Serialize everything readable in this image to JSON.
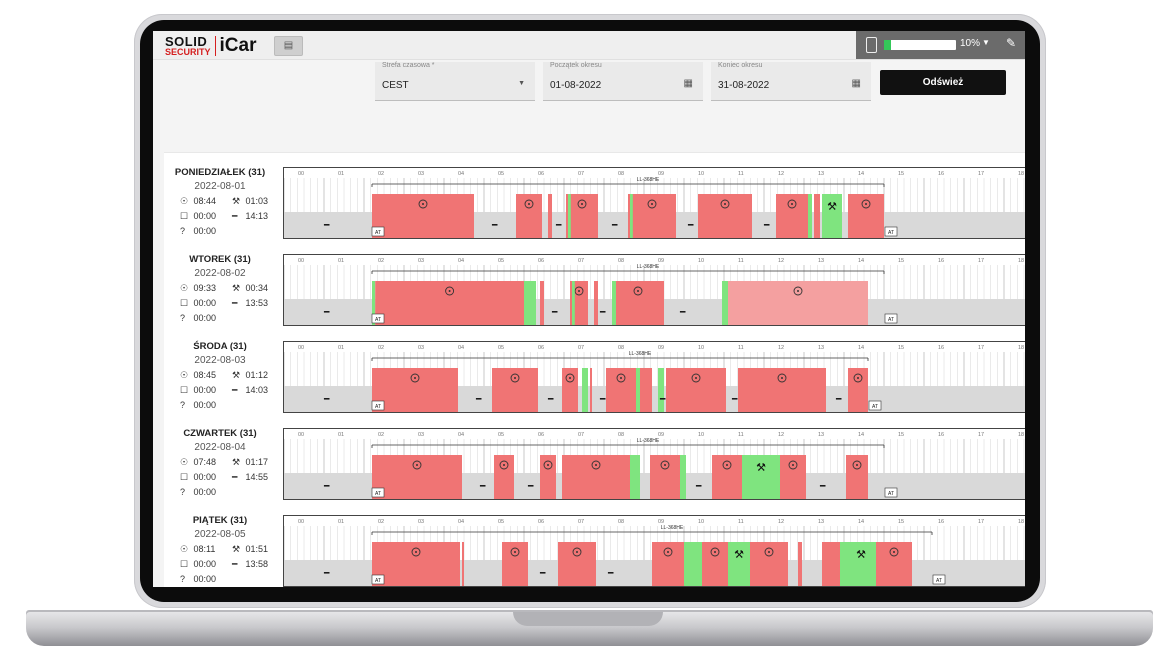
{
  "app": {
    "logo_solid": "SOLID",
    "logo_security": "SECURITY",
    "logo_icar": "iCar",
    "battery_percent_label": "10%",
    "battery_level": 0.1,
    "accent_color": "#d51f1f"
  },
  "filters": {
    "timezone_label": "Strefa czasowa *",
    "timezone_value": "CEST",
    "start_label": "Początek okresu",
    "start_value": "01-08-2022",
    "end_label": "Koniec okresu",
    "end_value": "31-08-2022",
    "refresh_label": "Odśwież"
  },
  "colors": {
    "driving": "#f07474",
    "driving_light": "#f4a0a0",
    "other_work": "#7fe47f",
    "rest": "#d9d9d9",
    "grid": "#d6d6d6"
  },
  "hour_labels": [
    "00",
    "01",
    "02",
    "03",
    "04",
    "05",
    "06",
    "07",
    "08",
    "09",
    "10",
    "11",
    "12",
    "13",
    "14",
    "15",
    "16",
    "17",
    "18"
  ],
  "days": [
    {
      "name": "PONIEDZIAŁEK (31)",
      "date": "2022-08-01",
      "driving": "08:44",
      "work": "01:03",
      "availability": "00:00",
      "rest": "14:13",
      "unknown": "00:00",
      "plate": "LL-368HE",
      "at_label": "AT",
      "plate_span": [
        2.2,
        15.0
      ],
      "blocks": [
        {
          "s": 2.2,
          "e": 4.75,
          "t": "d",
          "icon": true
        },
        {
          "s": 5.8,
          "e": 6.45,
          "t": "d",
          "icon": true
        },
        {
          "s": 6.6,
          "e": 6.7,
          "t": "d"
        },
        {
          "s": 7.05,
          "e": 7.85,
          "t": "d",
          "icon": true
        },
        {
          "s": 7.1,
          "e": 7.17,
          "t": "w"
        },
        {
          "s": 8.6,
          "e": 9.8,
          "t": "d",
          "icon": true
        },
        {
          "s": 8.65,
          "e": 8.72,
          "t": "w"
        },
        {
          "s": 10.35,
          "e": 11.7,
          "t": "d",
          "icon": true
        },
        {
          "s": 12.3,
          "e": 13.1,
          "t": "d",
          "icon": true
        },
        {
          "s": 13.1,
          "e": 13.2,
          "t": "w"
        },
        {
          "s": 13.25,
          "e": 13.4,
          "t": "d"
        },
        {
          "s": 13.45,
          "e": 13.95,
          "t": "w",
          "icon": true
        },
        {
          "s": 14.1,
          "e": 15.0,
          "t": "d",
          "icon": true
        }
      ],
      "rests": [
        1.0,
        5.2,
        6.8,
        8.2,
        10.1,
        12.0
      ]
    },
    {
      "name": "WTOREK (31)",
      "date": "2022-08-02",
      "driving": "09:33",
      "work": "00:34",
      "availability": "00:00",
      "rest": "13:53",
      "unknown": "00:00",
      "plate": "LL-368HE",
      "at_label": "AT",
      "plate_span": [
        2.2,
        15.0
      ],
      "blocks": [
        {
          "s": 2.2,
          "e": 2.28,
          "t": "w"
        },
        {
          "s": 2.28,
          "e": 6.0,
          "t": "d",
          "icon": true
        },
        {
          "s": 6.0,
          "e": 6.3,
          "t": "w"
        },
        {
          "s": 6.4,
          "e": 6.5,
          "t": "d"
        },
        {
          "s": 7.15,
          "e": 7.6,
          "t": "d",
          "icon": true
        },
        {
          "s": 7.2,
          "e": 7.27,
          "t": "w"
        },
        {
          "s": 7.75,
          "e": 7.85,
          "t": "d"
        },
        {
          "s": 8.2,
          "e": 9.5,
          "t": "d",
          "icon": true
        },
        {
          "s": 8.2,
          "e": 8.3,
          "t": "w"
        },
        {
          "s": 10.95,
          "e": 11.1,
          "t": "w"
        },
        {
          "s": 11.1,
          "e": 14.6,
          "t": "dl",
          "icon": true
        }
      ],
      "rests": [
        1.0,
        6.7,
        7.9,
        9.9
      ]
    },
    {
      "name": "ŚRODA (31)",
      "date": "2022-08-03",
      "driving": "08:45",
      "work": "01:12",
      "availability": "00:00",
      "rest": "14:03",
      "unknown": "00:00",
      "plate": "LL-368HE",
      "at_label": "AT",
      "plate_span": [
        2.2,
        14.6
      ],
      "blocks": [
        {
          "s": 2.2,
          "e": 4.35,
          "t": "d",
          "icon": true
        },
        {
          "s": 5.2,
          "e": 6.35,
          "t": "d",
          "icon": true
        },
        {
          "s": 6.95,
          "e": 7.35,
          "t": "d",
          "icon": true
        },
        {
          "s": 7.45,
          "e": 7.6,
          "t": "w"
        },
        {
          "s": 7.65,
          "e": 7.7,
          "t": "d"
        },
        {
          "s": 8.05,
          "e": 8.8,
          "t": "d",
          "icon": true
        },
        {
          "s": 8.8,
          "e": 8.9,
          "t": "w"
        },
        {
          "s": 8.9,
          "e": 9.2,
          "t": "d"
        },
        {
          "s": 9.35,
          "e": 9.5,
          "t": "w"
        },
        {
          "s": 9.55,
          "e": 11.05,
          "t": "d",
          "icon": true
        },
        {
          "s": 11.35,
          "e": 13.55,
          "t": "d",
          "icon": true
        },
        {
          "s": 14.1,
          "e": 14.6,
          "t": "d",
          "icon": true
        }
      ],
      "rests": [
        1.0,
        4.8,
        6.6,
        7.9,
        9.4,
        11.2,
        13.8
      ]
    },
    {
      "name": "CZWARTEK (31)",
      "date": "2022-08-04",
      "driving": "07:48",
      "work": "01:17",
      "availability": "00:00",
      "rest": "14:55",
      "unknown": "00:00",
      "plate": "LL-368HE",
      "at_label": "AT",
      "plate_span": [
        2.2,
        15.0
      ],
      "blocks": [
        {
          "s": 2.2,
          "e": 4.45,
          "t": "d",
          "icon": true
        },
        {
          "s": 5.25,
          "e": 5.75,
          "t": "d",
          "icon": true
        },
        {
          "s": 6.4,
          "e": 6.8,
          "t": "d",
          "icon": true
        },
        {
          "s": 6.95,
          "e": 8.65,
          "t": "d",
          "icon": true
        },
        {
          "s": 8.65,
          "e": 8.9,
          "t": "w"
        },
        {
          "s": 9.15,
          "e": 9.9,
          "t": "d",
          "icon": true
        },
        {
          "s": 9.9,
          "e": 10.05,
          "t": "w"
        },
        {
          "s": 10.7,
          "e": 11.45,
          "t": "d",
          "icon": true
        },
        {
          "s": 11.45,
          "e": 12.4,
          "t": "w",
          "icon": true
        },
        {
          "s": 12.4,
          "e": 13.05,
          "t": "d",
          "icon": true
        },
        {
          "s": 14.05,
          "e": 14.6,
          "t": "d",
          "icon": true
        }
      ],
      "rests": [
        1.0,
        4.9,
        6.1,
        10.3,
        13.4
      ]
    },
    {
      "name": "PIĄTEK (31)",
      "date": "2022-08-05",
      "driving": "08:11",
      "work": "01:51",
      "availability": "00:00",
      "rest": "13:58",
      "unknown": "00:00",
      "plate": "LL-368HE",
      "at_label": "AT",
      "plate_span": [
        2.2,
        16.2
      ],
      "blocks": [
        {
          "s": 2.2,
          "e": 4.4,
          "t": "d",
          "icon": true
        },
        {
          "s": 4.45,
          "e": 4.5,
          "t": "d"
        },
        {
          "s": 5.45,
          "e": 6.1,
          "t": "d",
          "icon": true
        },
        {
          "s": 6.85,
          "e": 7.8,
          "t": "d",
          "icon": true
        },
        {
          "s": 9.2,
          "e": 10.0,
          "t": "d",
          "icon": true
        },
        {
          "s": 10.0,
          "e": 10.45,
          "t": "w"
        },
        {
          "s": 10.45,
          "e": 11.1,
          "t": "d",
          "icon": true
        },
        {
          "s": 11.1,
          "e": 11.65,
          "t": "w",
          "icon": true
        },
        {
          "s": 11.65,
          "e": 12.6,
          "t": "d",
          "icon": true
        },
        {
          "s": 12.85,
          "e": 12.95,
          "t": "d"
        },
        {
          "s": 13.45,
          "e": 13.9,
          "t": "d"
        },
        {
          "s": 13.9,
          "e": 14.05,
          "t": "w"
        },
        {
          "s": 14.05,
          "e": 14.8,
          "t": "w",
          "icon": true
        },
        {
          "s": 14.8,
          "e": 15.7,
          "t": "d",
          "icon": true
        }
      ],
      "rests": [
        1.0,
        6.4,
        8.1
      ]
    }
  ]
}
